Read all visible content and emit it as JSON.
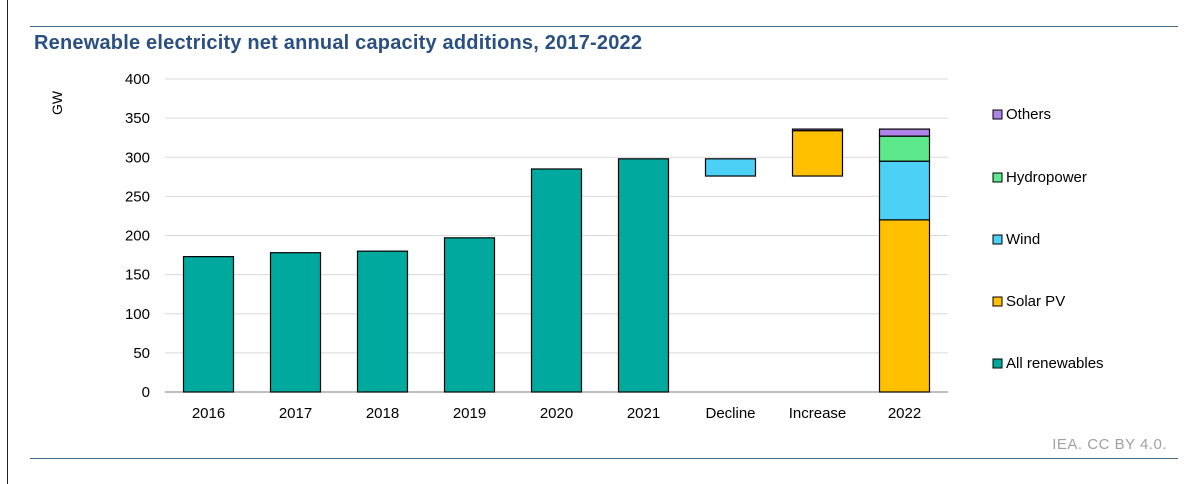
{
  "title": "Renewable electricity net annual capacity additions, 2017-2022",
  "source": "IEA. CC BY 4.0.",
  "chart_data": {
    "type": "bar",
    "title": "Renewable electricity net annual capacity additions, 2017-2022",
    "ylabel": "GW",
    "ylim": [
      0,
      400
    ],
    "yticks": [
      0,
      50,
      100,
      150,
      200,
      250,
      300,
      350,
      400
    ],
    "grid": true,
    "legend_position": "right",
    "categories": [
      "2016",
      "2017",
      "2018",
      "2019",
      "2020",
      "2021",
      "Decline",
      "Increase",
      "2022"
    ],
    "series": [
      {
        "name": "All renewables",
        "color": "#00a99d",
        "values": [
          173,
          178,
          180,
          197,
          285,
          298,
          null,
          null,
          null
        ]
      },
      {
        "name": "Solar PV",
        "color": "#ffc000",
        "segments": [
          {
            "category": "Increase",
            "from": 276,
            "to": 334
          },
          {
            "category": "2022",
            "from": 0,
            "to": 220
          }
        ]
      },
      {
        "name": "Wind",
        "color": "#4dd0f5",
        "segments": [
          {
            "category": "Decline",
            "from": 276,
            "to": 298
          },
          {
            "category": "2022",
            "from": 220,
            "to": 295
          }
        ]
      },
      {
        "name": "Hydropower",
        "color": "#5ee88c",
        "segments": [
          {
            "category": "2022",
            "from": 295,
            "to": 327
          }
        ]
      },
      {
        "name": "Others",
        "color": "#b083e8",
        "segments": [
          {
            "category": "Increase",
            "from": 334,
            "to": 336
          },
          {
            "category": "2022",
            "from": 327,
            "to": 336
          }
        ]
      }
    ],
    "legend": [
      "Others",
      "Hydropower",
      "Wind",
      "Solar PV",
      "All renewables"
    ]
  }
}
